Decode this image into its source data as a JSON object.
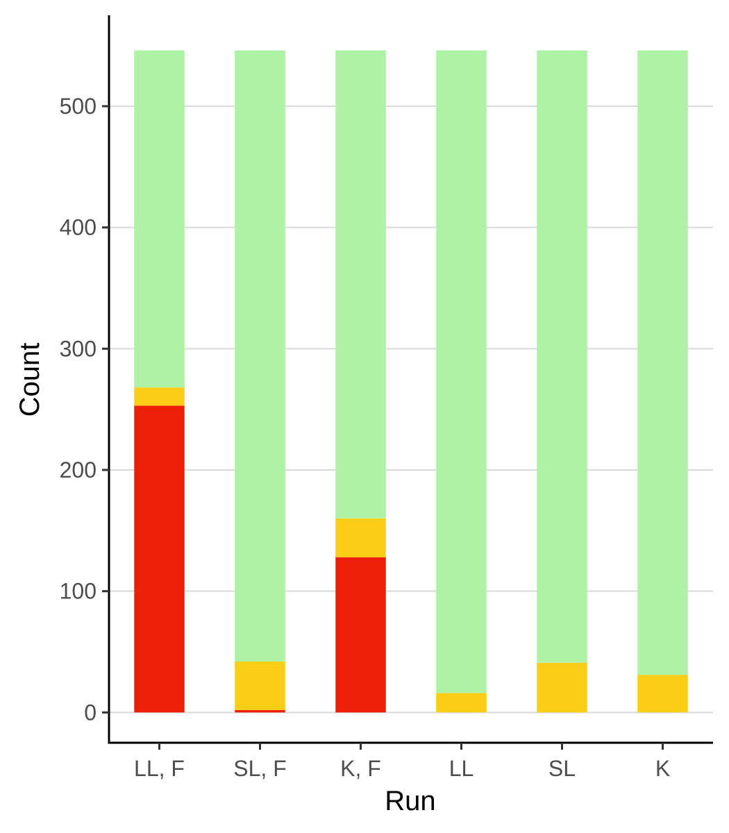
{
  "chart_data": {
    "type": "bar",
    "stacked": true,
    "title": "",
    "xlabel": "Run",
    "ylabel": "Count",
    "categories": [
      "LL, F",
      "SL, F",
      "K, F",
      "LL",
      "SL",
      "K"
    ],
    "ylim": [
      -25,
      575
    ],
    "yticks": [
      0,
      100,
      200,
      300,
      400,
      500
    ],
    "y_tick_labels": [
      "0",
      "100",
      "200",
      "300",
      "400",
      "500"
    ],
    "grid": "horizontal major",
    "legend": "none",
    "series": [
      {
        "color": "#ee1f08",
        "values": [
          253,
          2,
          128,
          0,
          0,
          0
        ]
      },
      {
        "color": "#facd16",
        "values": [
          15,
          40,
          32,
          16,
          41,
          31
        ]
      },
      {
        "color": "#aef2a6",
        "values": [
          278,
          504,
          386,
          530,
          505,
          515
        ]
      }
    ],
    "colors": {
      "grid": "#d9d9d9",
      "axis": "#000000",
      "tick_label": "#4d4d4d",
      "axis_title": "#000000"
    }
  }
}
